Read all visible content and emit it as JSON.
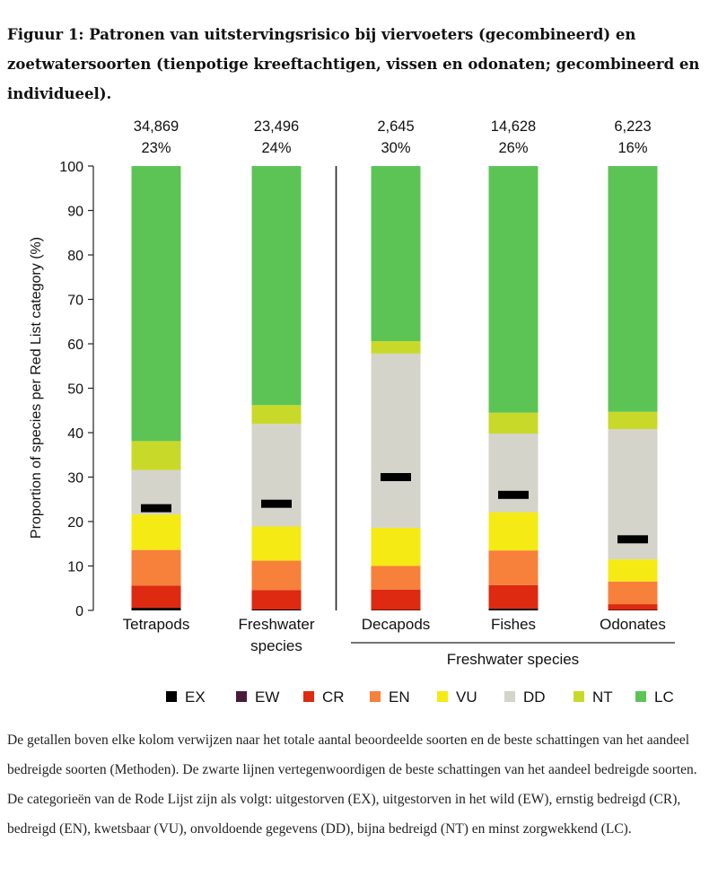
{
  "figure": {
    "title": "Figuur 1: Patronen van uitstervingsrisico bij viervoeters (gecombineerd) en zoetwatersoorten (tienpotige kreeftachtigen, vissen en odonaten; gecombineerd en individueel).",
    "description": "De getallen boven elke kolom verwijzen naar het totale aantal beoordeelde soorten en de beste schattingen van het aandeel bedreigde soorten (Methoden). De zwarte lijnen vertegenwoordigen de beste schattingen van het aandeel bedreigde soorten. De categorieën van de Rode Lijst zijn als volgt: uitgestorven (EX), uitgestorven in het wild (EW), ernstig bedreigd (CR), bedreigd (EN), kwetsbaar (VU), onvoldoende gegevens (DD), bijna bedreigd (NT) en minst zorgwekkend (LC)."
  },
  "chart_data": {
    "type": "bar",
    "stacked": true,
    "ylabel": "Proportion of species per Red List category (%)",
    "ylim": [
      0,
      100
    ],
    "yticks": [
      0,
      10,
      20,
      30,
      40,
      50,
      60,
      70,
      80,
      90,
      100
    ],
    "grid": false,
    "group_label": "Freshwater species",
    "categories": [
      {
        "label_lines": [
          "Tetrapods"
        ],
        "count": "34,869",
        "threatened_pct": "23%",
        "best_estimate": 23,
        "divider_after": false,
        "in_group": false
      },
      {
        "label_lines": [
          "Freshwater",
          "species"
        ],
        "count": "23,496",
        "threatened_pct": "24%",
        "best_estimate": 24,
        "divider_after": true,
        "in_group": false
      },
      {
        "label_lines": [
          "Decapods"
        ],
        "count": "2,645",
        "threatened_pct": "30%",
        "best_estimate": 30,
        "divider_after": false,
        "in_group": true
      },
      {
        "label_lines": [
          "Fishes"
        ],
        "count": "14,628",
        "threatened_pct": "26%",
        "best_estimate": 26,
        "divider_after": false,
        "in_group": true
      },
      {
        "label_lines": [
          "Odonates"
        ],
        "count": "6,223",
        "threatened_pct": "16%",
        "best_estimate": 16,
        "divider_after": false,
        "in_group": true
      }
    ],
    "series": [
      {
        "name": "EX",
        "color": "#000000",
        "values": [
          0.5,
          0.2,
          0.1,
          0.3,
          0.1
        ]
      },
      {
        "name": "EW",
        "color": "#4a1a3a",
        "values": [
          0.1,
          0.0,
          0.0,
          0.1,
          0.0
        ]
      },
      {
        "name": "CR",
        "color": "#dd2a10",
        "values": [
          5.0,
          4.4,
          4.6,
          5.3,
          1.3
        ]
      },
      {
        "name": "EN",
        "color": "#f7803a",
        "values": [
          8.0,
          6.6,
          5.3,
          7.8,
          5.1
        ]
      },
      {
        "name": "VU",
        "color": "#f5ea14",
        "values": [
          8.0,
          7.7,
          8.6,
          8.6,
          5.0
        ]
      },
      {
        "name": "DD",
        "color": "#d4d4ca",
        "values": [
          10.0,
          23.1,
          39.2,
          17.7,
          29.3
        ]
      },
      {
        "name": "NT",
        "color": "#c9d92a",
        "values": [
          6.5,
          4.2,
          2.8,
          4.7,
          3.9
        ]
      },
      {
        "name": "LC",
        "color": "#5cc455",
        "values": [
          61.9,
          53.8,
          39.4,
          55.5,
          55.3
        ]
      }
    ],
    "legend": [
      "EX",
      "EW",
      "CR",
      "EN",
      "VU",
      "DD",
      "NT",
      "LC"
    ],
    "legend_position": "bottom"
  }
}
